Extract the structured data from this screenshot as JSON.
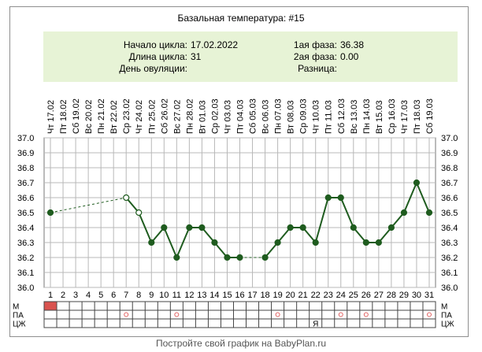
{
  "title": "Базальная температура: #15",
  "info": {
    "cycle_start_label": "Начало цикла:",
    "cycle_start_value": "17.02.2022",
    "cycle_length_label": "Длина цикла:",
    "cycle_length_value": "31",
    "ovulation_label": "День овуляции:",
    "ovulation_value": "",
    "phase1_label": "1ая фаза:",
    "phase1_value": "36.38",
    "phase2_label": "2ая фаза:",
    "phase2_value": "0.00",
    "diff_label": "Разница:",
    "diff_value": ""
  },
  "footer": "Постройте свой график на BabyPlan.ru",
  "colors": {
    "line": "#1f5c1f",
    "info_bg": "#e7f3d6",
    "grid": "#b8b8b8",
    "menses": "#d9534f",
    "marker": "#e06060"
  },
  "chart_data": {
    "type": "line",
    "title": "Базальная температура: #15",
    "y_ticks": [
      "37.0",
      "36.9",
      "36.8",
      "36.7",
      "36.6",
      "36.5",
      "36.4",
      "36.3",
      "36.2",
      "36.1",
      "36.0"
    ],
    "ylim": [
      36.0,
      37.0
    ],
    "days": [
      "1",
      "2",
      "3",
      "4",
      "5",
      "6",
      "7",
      "8",
      "9",
      "10",
      "11",
      "12",
      "13",
      "14",
      "15",
      "16",
      "17",
      "18",
      "19",
      "20",
      "21",
      "22",
      "23",
      "24",
      "25",
      "26",
      "27",
      "28",
      "29",
      "30",
      "31"
    ],
    "weekdays": [
      "Чт",
      "Пт",
      "Сб",
      "Вс",
      "Пн",
      "Вт",
      "Ср",
      "Чт",
      "Пт",
      "Сб",
      "Вс",
      "Пн",
      "Вт",
      "Ср",
      "Чт",
      "Пт",
      "Сб",
      "Вс",
      "Пн",
      "Вт",
      "Ср",
      "Чт",
      "Пт",
      "Сб",
      "Вс",
      "Пн",
      "Вт",
      "Ср",
      "Чт",
      "Пт",
      "Сб"
    ],
    "dates": [
      "17.02",
      "18.02",
      "19.02",
      "20.02",
      "21.02",
      "22.02",
      "23.02",
      "24.02",
      "25.02",
      "26.02",
      "27.02",
      "28.02",
      "01.03",
      "02.03",
      "03.03",
      "04.03",
      "05.03",
      "06.03",
      "07.03",
      "08.03",
      "09.03",
      "10.03",
      "11.03",
      "12.03",
      "13.03",
      "14.03",
      "15.03",
      "16.03",
      "17.03",
      "18.03",
      "19.03"
    ],
    "temps": [
      36.5,
      null,
      null,
      null,
      null,
      null,
      36.6,
      36.5,
      36.3,
      36.4,
      36.2,
      36.4,
      36.4,
      36.3,
      36.2,
      36.2,
      null,
      36.2,
      36.3,
      36.4,
      36.4,
      36.3,
      36.6,
      36.6,
      36.4,
      36.3,
      36.3,
      36.4,
      36.5,
      36.7,
      36.5
    ],
    "open_points": [
      7,
      8
    ],
    "grid": true,
    "rows": [
      {
        "label": "М",
        "marks": [
          {
            "day": 1,
            "type": "fill"
          }
        ]
      },
      {
        "label": "ПА",
        "marks": [
          {
            "day": 7,
            "type": "circle"
          },
          {
            "day": 11,
            "type": "circle"
          },
          {
            "day": 19,
            "type": "circle"
          },
          {
            "day": 24,
            "type": "circle"
          },
          {
            "day": 26,
            "type": "circle"
          },
          {
            "day": 31,
            "type": "circle"
          }
        ]
      },
      {
        "label": "ЦЖ",
        "marks": [
          {
            "day": 22,
            "type": "text",
            "text": "Я"
          }
        ]
      }
    ]
  }
}
